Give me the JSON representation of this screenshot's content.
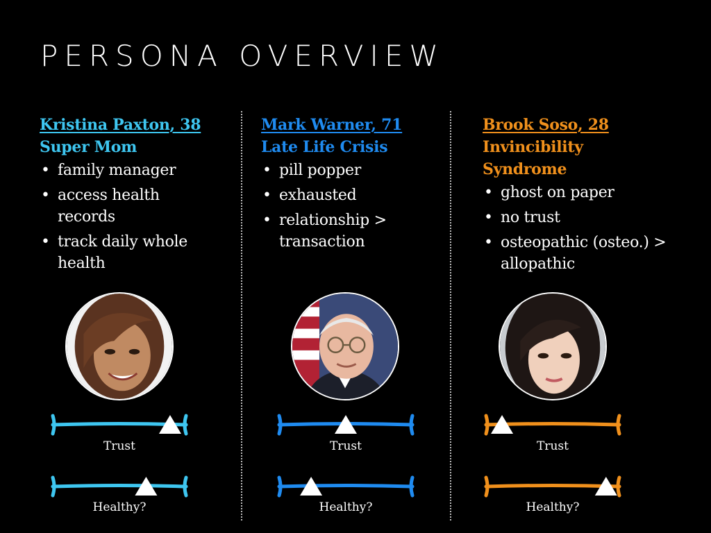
{
  "title": "PERSONA OVERVIEW",
  "personas": [
    {
      "name": "Kristina Paxton, 38",
      "subtitle": "Super Mom",
      "color": "#3ec6f0",
      "bullets": [
        "family manager",
        "access health records",
        "track daily whole health"
      ],
      "trust_label": "Trust",
      "trust_level": 0.88,
      "healthy_label": "Healthy?",
      "healthy_level": 0.7
    },
    {
      "name": "Mark Warner, 71",
      "subtitle": "Late Life Crisis",
      "color": "#1f8bf0",
      "bullets": [
        "pill popper",
        "exhausted",
        "relationship > transaction"
      ],
      "trust_label": "Trust",
      "trust_level": 0.5,
      "healthy_label": "Healthy?",
      "healthy_level": 0.24
    },
    {
      "name": "Brook Soso, 28",
      "subtitle": "Invincibility Syndrome",
      "color": "#f0901c",
      "bullets": [
        "ghost on paper",
        "no trust",
        "osteopathic (osteo.) > allopathic"
      ],
      "trust_label": "Trust",
      "trust_level": 0.12,
      "healthy_label": "Healthy?",
      "healthy_level": 0.9
    }
  ]
}
